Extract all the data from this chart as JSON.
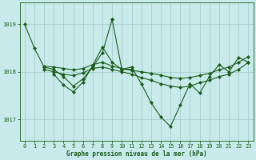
{
  "title": "Graphe pression niveau de la mer (hPa)",
  "bg_color": "#c8eaea",
  "grid_color": "#a0c8c8",
  "line_color": "#1a5c1a",
  "xlim": [
    -0.5,
    23.5
  ],
  "ylim": [
    1016.55,
    1019.45
  ],
  "yticks": [
    1017,
    1018,
    1019
  ],
  "xticks": [
    0,
    1,
    2,
    3,
    4,
    5,
    6,
    7,
    8,
    9,
    10,
    11,
    12,
    13,
    14,
    15,
    16,
    17,
    18,
    19,
    20,
    21,
    22,
    23
  ],
  "series": [
    {
      "x": [
        0,
        1,
        2,
        3,
        4,
        5,
        6,
        7,
        8,
        9
      ],
      "y": [
        1019.0,
        1018.5,
        1018.1,
        1018.05,
        1017.9,
        1017.7,
        1017.85,
        1018.1,
        1018.4,
        1019.1
      ]
    },
    {
      "x": [
        9,
        10,
        11,
        12,
        13,
        14,
        15,
        16,
        17,
        18,
        19,
        20,
        21,
        22,
        23
      ],
      "y": [
        1019.1,
        1018.05,
        1018.1,
        1017.75,
        1017.35,
        1017.05,
        1016.85,
        1017.3,
        1017.75,
        1017.55,
        1017.9,
        1018.15,
        1018.0,
        1018.3,
        1018.2
      ]
    },
    {
      "x": [
        2,
        3,
        4,
        5,
        6,
        7,
        8,
        9,
        10,
        11,
        12,
        13,
        14,
        15,
        16,
        17,
        18,
        19,
        20,
        21,
        22,
        23
      ],
      "y": [
        1018.05,
        1018.0,
        1017.95,
        1017.92,
        1017.98,
        1018.07,
        1018.1,
        1018.05,
        1018.0,
        1017.95,
        1017.88,
        1017.82,
        1017.75,
        1017.7,
        1017.67,
        1017.7,
        1017.77,
        1017.82,
        1017.9,
        1017.95,
        1018.05,
        1018.2
      ]
    },
    {
      "x": [
        2,
        3,
        4,
        5,
        6,
        7,
        8,
        9,
        10,
        11,
        12,
        13,
        14,
        15,
        16,
        17,
        18,
        19,
        20,
        21,
        22,
        23
      ],
      "y": [
        1018.12,
        1018.1,
        1018.07,
        1018.04,
        1018.07,
        1018.15,
        1018.2,
        1018.12,
        1018.07,
        1018.03,
        1018.0,
        1017.97,
        1017.93,
        1017.88,
        1017.86,
        1017.88,
        1017.92,
        1017.97,
        1018.04,
        1018.1,
        1018.2,
        1018.32
      ]
    },
    {
      "x": [
        3,
        4,
        5,
        6,
        7,
        8,
        9,
        10,
        11
      ],
      "y": [
        1017.95,
        1017.72,
        1017.58,
        1017.78,
        1018.13,
        1018.52,
        1018.2,
        1018.05,
        1018.05
      ]
    }
  ]
}
